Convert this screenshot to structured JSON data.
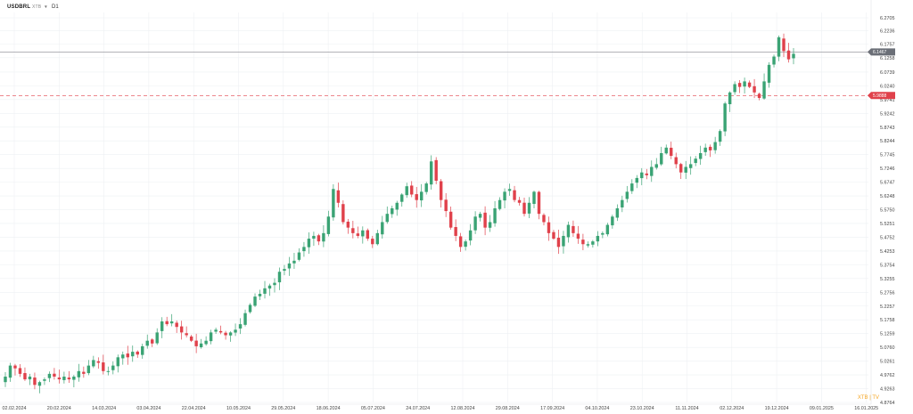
{
  "header": {
    "symbol": "USDBRL",
    "symbol_sub": "XTB",
    "timeframe": "D1"
  },
  "watermark": "XTB | TV",
  "colors": {
    "bull": "#3aa374",
    "bear": "#e0414b",
    "price_line": "#9a9aa0",
    "level_line": "#e0414b",
    "grid": "#eef0f3",
    "axis_text": "#444444"
  },
  "chart_data": {
    "type": "candlestick",
    "title": "",
    "xlabel": "",
    "ylabel": "",
    "ylim": [
      4.9264,
      6.2805
    ],
    "y_ticks": [
      "6.2705",
      "6.2236",
      "6.1757",
      "6.1258",
      "6.0739",
      "6.0240",
      "5.9741",
      "5.9242",
      "5.8743",
      "5.8244",
      "5.7745",
      "5.7246",
      "5.6747",
      "5.6248",
      "5.5750",
      "5.5251",
      "5.4752",
      "5.4253",
      "5.3754",
      "5.3255",
      "5.2756",
      "5.2257",
      "5.1758",
      "5.1259",
      "5.0760",
      "5.0261",
      "4.9762",
      "4.9263",
      "4.8764"
    ],
    "x_ticks": [
      "02.02.2024",
      "20.02.2024",
      "14.03.2024",
      "03.04.2024",
      "22.04.2024",
      "10.05.2024",
      "29.05.2024",
      "18.06.2024",
      "05.07.2024",
      "24.07.2024",
      "12.08.2024",
      "29.08.2024",
      "17.09.2024",
      "04.10.2024",
      "23.10.2024",
      "11.11.2024",
      "02.12.2024",
      "19.12.2024",
      "09.01.2025",
      "16.01.2025"
    ],
    "current_price": "6.1467",
    "horizontal_level": "5.9888",
    "closes": [
      4.97,
      5.01,
      5.0,
      4.98,
      4.96,
      4.97,
      4.94,
      4.95,
      4.96,
      4.98,
      4.97,
      4.96,
      4.97,
      4.96,
      4.97,
      4.99,
      4.98,
      5.01,
      5.03,
      5.02,
      4.99,
      4.99,
      5.01,
      5.04,
      5.05,
      5.04,
      5.06,
      5.05,
      5.08,
      5.1,
      5.09,
      5.13,
      5.17,
      5.16,
      5.17,
      5.15,
      5.13,
      5.12,
      5.1,
      5.08,
      5.09,
      5.1,
      5.13,
      5.14,
      5.13,
      5.12,
      5.13,
      5.14,
      5.16,
      5.2,
      5.23,
      5.26,
      5.27,
      5.29,
      5.3,
      5.31,
      5.35,
      5.36,
      5.38,
      5.39,
      5.42,
      5.44,
      5.47,
      5.48,
      5.46,
      5.49,
      5.55,
      5.65,
      5.6,
      5.53,
      5.51,
      5.49,
      5.48,
      5.5,
      5.47,
      5.45,
      5.49,
      5.53,
      5.56,
      5.58,
      5.6,
      5.63,
      5.66,
      5.63,
      5.61,
      5.64,
      5.67,
      5.75,
      5.68,
      5.61,
      5.57,
      5.51,
      5.48,
      5.44,
      5.46,
      5.5,
      5.55,
      5.56,
      5.51,
      5.53,
      5.58,
      5.61,
      5.64,
      5.65,
      5.61,
      5.6,
      5.56,
      5.6,
      5.64,
      5.56,
      5.53,
      5.49,
      5.47,
      5.44,
      5.48,
      5.52,
      5.49,
      5.47,
      5.45,
      5.45,
      5.46,
      5.48,
      5.49,
      5.52,
      5.55,
      5.58,
      5.61,
      5.64,
      5.67,
      5.69,
      5.71,
      5.7,
      5.73,
      5.74,
      5.78,
      5.8,
      5.77,
      5.74,
      5.71,
      5.73,
      5.74,
      5.76,
      5.78,
      5.8,
      5.79,
      5.82,
      5.86,
      5.96,
      6.0,
      6.03,
      6.02,
      6.04,
      6.02,
      6.0,
      5.98,
      6.04,
      6.1,
      6.13,
      6.2,
      6.15,
      6.12,
      6.14
    ]
  }
}
